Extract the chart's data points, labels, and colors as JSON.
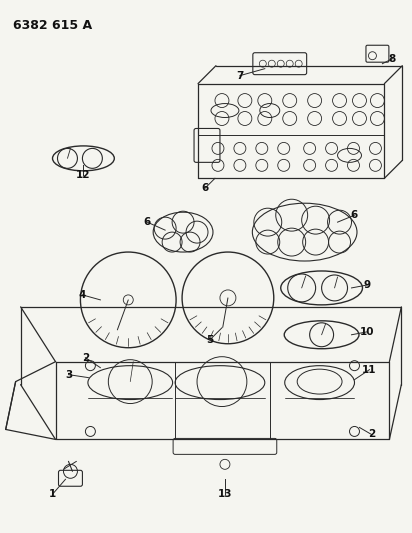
{
  "title": "6382 615 A",
  "bg": "#f5f5f0",
  "lc": "#2a2a2a",
  "figsize": [
    4.12,
    5.33
  ],
  "dpi": 100,
  "xlim": [
    0,
    412
  ],
  "ylim": [
    0,
    533
  ]
}
